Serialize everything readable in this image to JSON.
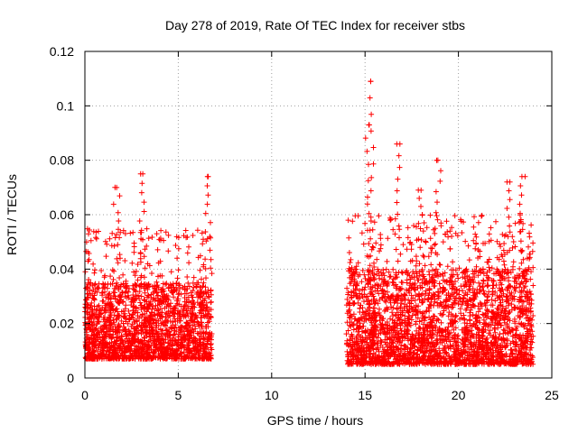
{
  "chart_data": {
    "type": "scatter",
    "title": "Day 278 of 2019, Rate Of TEC Index for receiver stbs",
    "xlabel": "GPS time / hours",
    "ylabel": "ROTI / TECUs",
    "xlim": [
      0,
      25
    ],
    "ylim": [
      0,
      0.12
    ],
    "xticks": [
      0,
      5,
      10,
      15,
      20,
      25
    ],
    "yticks": [
      0,
      0.02,
      0.04,
      0.06,
      0.08,
      0.1,
      0.12
    ],
    "xtick_labels": [
      "0",
      "5",
      "10",
      "15",
      "20",
      "25"
    ],
    "ytick_labels": [
      "0",
      "0.02",
      "0.04",
      "0.06",
      "0.08",
      "0.1",
      "0.12"
    ],
    "grid": true,
    "marker": "+",
    "color": "#ff0000",
    "series": [
      {
        "name": "ROTI",
        "segments": [
          {
            "x_start": 0.0,
            "x_end": 6.8,
            "typical_range": [
              0.007,
              0.035
            ]
          },
          {
            "x_start": 14.0,
            "x_end": 24.0,
            "typical_range": [
              0.005,
              0.04
            ]
          }
        ],
        "peaks": [
          {
            "x": 1.7,
            "y": 0.07
          },
          {
            "x": 3.1,
            "y": 0.075
          },
          {
            "x": 6.6,
            "y": 0.074
          },
          {
            "x": 15.2,
            "y": 0.093
          },
          {
            "x": 15.3,
            "y": 0.109
          },
          {
            "x": 16.7,
            "y": 0.086
          },
          {
            "x": 18.0,
            "y": 0.069
          },
          {
            "x": 18.9,
            "y": 0.08
          },
          {
            "x": 22.6,
            "y": 0.072
          },
          {
            "x": 23.4,
            "y": 0.074
          }
        ]
      }
    ]
  }
}
